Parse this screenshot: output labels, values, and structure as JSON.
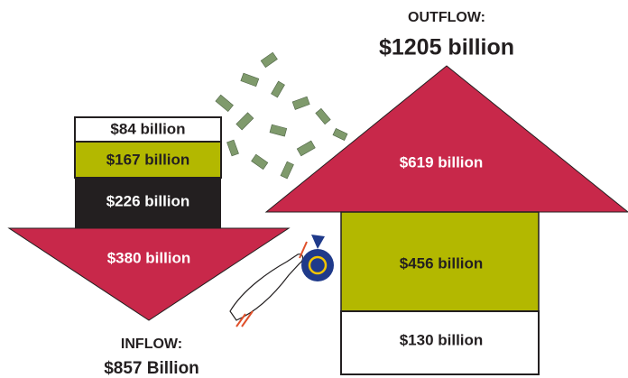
{
  "inflow": {
    "title": "INFLOW:",
    "total": "$857 Billion",
    "segments": [
      "$84 billion",
      "$167 billion",
      "$226 billion",
      "$380 billion"
    ]
  },
  "outflow": {
    "title": "OUTFLOW:",
    "total": "$1205 billion",
    "segments": [
      "$619 billion",
      "$456 billion",
      "$130 billion"
    ]
  }
}
